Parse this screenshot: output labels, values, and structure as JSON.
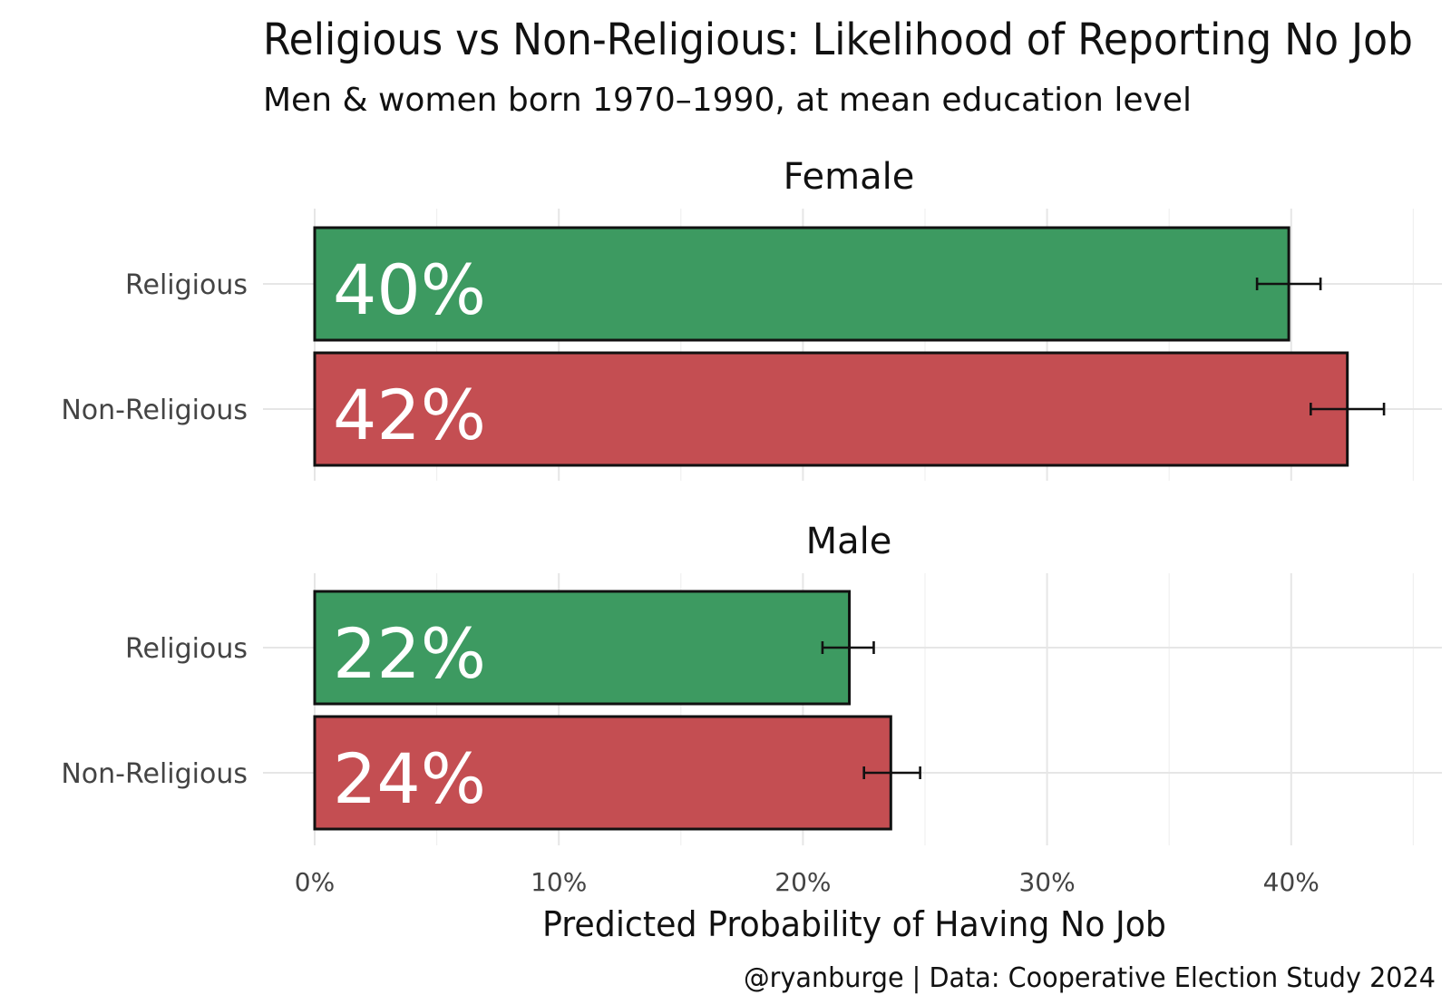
{
  "chart_data": {
    "type": "bar",
    "orientation": "horizontal",
    "title": "Religious vs Non-Religious: Likelihood of Reporting No Job",
    "subtitle": "Men & women born 1970–1990, at mean education level",
    "xlabel": "Predicted Probability of Having No Job",
    "caption": "@ryanburge | Data: Cooperative Election Study 2024",
    "xlim": [
      0,
      0.45
    ],
    "x_ticks": [
      0,
      0.1,
      0.2,
      0.3,
      0.4
    ],
    "x_tick_labels": [
      "0%",
      "10%",
      "20%",
      "30%",
      "40%"
    ],
    "categories": [
      "Religious",
      "Non-Religious"
    ],
    "colors": {
      "Religious": "#3d9a61",
      "Non-Religious": "#c44e52"
    },
    "facets": [
      {
        "name": "Female",
        "bars": [
          {
            "category": "Religious",
            "value": 0.399,
            "lower": 0.386,
            "upper": 0.412,
            "label": "40%"
          },
          {
            "category": "Non-Religious",
            "value": 0.423,
            "lower": 0.408,
            "upper": 0.438,
            "label": "42%"
          }
        ]
      },
      {
        "name": "Male",
        "bars": [
          {
            "category": "Religious",
            "value": 0.219,
            "lower": 0.208,
            "upper": 0.229,
            "label": "22%"
          },
          {
            "category": "Non-Religious",
            "value": 0.236,
            "lower": 0.225,
            "upper": 0.248,
            "label": "24%"
          }
        ]
      }
    ]
  }
}
